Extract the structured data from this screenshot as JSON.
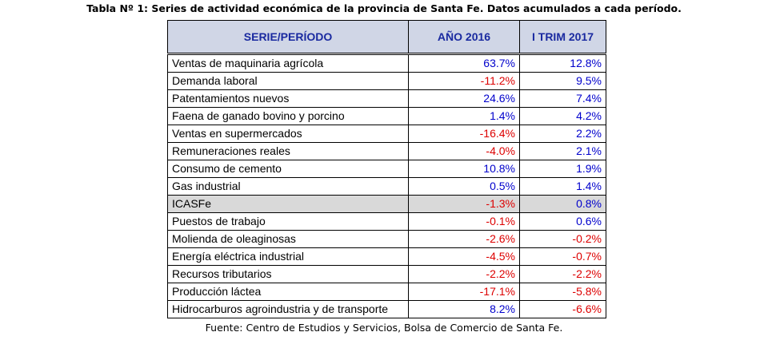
{
  "caption": "Tabla Nº 1: Series de actividad económica de la provincia de Santa Fe. Datos acumulados a cada período.",
  "table": {
    "headers": [
      "SERIE/PERÍODO",
      "AÑO 2016",
      "I TRIM 2017"
    ],
    "rows": [
      {
        "name": "Ventas de maquinaria agrícola",
        "v2016": "63.7%",
        "vtrim": "12.8%"
      },
      {
        "name": "Demanda laboral",
        "v2016": "-11.2%",
        "vtrim": "9.5%"
      },
      {
        "name": "Patentamientos nuevos",
        "v2016": "24.6%",
        "vtrim": "7.4%"
      },
      {
        "name": "Faena de ganado bovino y porcino",
        "v2016": "1.4%",
        "vtrim": "4.2%"
      },
      {
        "name": "Ventas en supermercados",
        "v2016": "-16.4%",
        "vtrim": "2.2%"
      },
      {
        "name": "Remuneraciones reales",
        "v2016": "-4.0%",
        "vtrim": "2.1%"
      },
      {
        "name": "Consumo de cemento",
        "v2016": "10.8%",
        "vtrim": "1.9%"
      },
      {
        "name": "Gas industrial",
        "v2016": "0.5%",
        "vtrim": "1.4%"
      },
      {
        "name": "ICASFe",
        "v2016": "-1.3%",
        "vtrim": "0.8%",
        "highlight": true
      },
      {
        "name": "Puestos de trabajo",
        "v2016": "-0.1%",
        "vtrim": "0.6%"
      },
      {
        "name": "Molienda de oleaginosas",
        "v2016": "-2.6%",
        "vtrim": "-0.2%"
      },
      {
        "name": "Energía eléctrica industrial",
        "v2016": "-4.5%",
        "vtrim": "-0.7%"
      },
      {
        "name": "Recursos tributarios",
        "v2016": "-2.2%",
        "vtrim": "-2.2%"
      },
      {
        "name": "Producción láctea",
        "v2016": "-17.1%",
        "vtrim": "-5.8%"
      },
      {
        "name": "Hidrocarburos agroindustria y de transporte",
        "v2016": "8.2%",
        "vtrim": "-6.6%"
      }
    ]
  },
  "colors": {
    "positive": "#0000cc",
    "negative": "#dd0000",
    "header_text": "#1a2aa0",
    "header_bg": "#d0d6e6",
    "highlight_bg": "#d9d9d9"
  },
  "source": "Fuente: Centro de Estudios y Servicios, Bolsa de Comercio de Santa Fe."
}
